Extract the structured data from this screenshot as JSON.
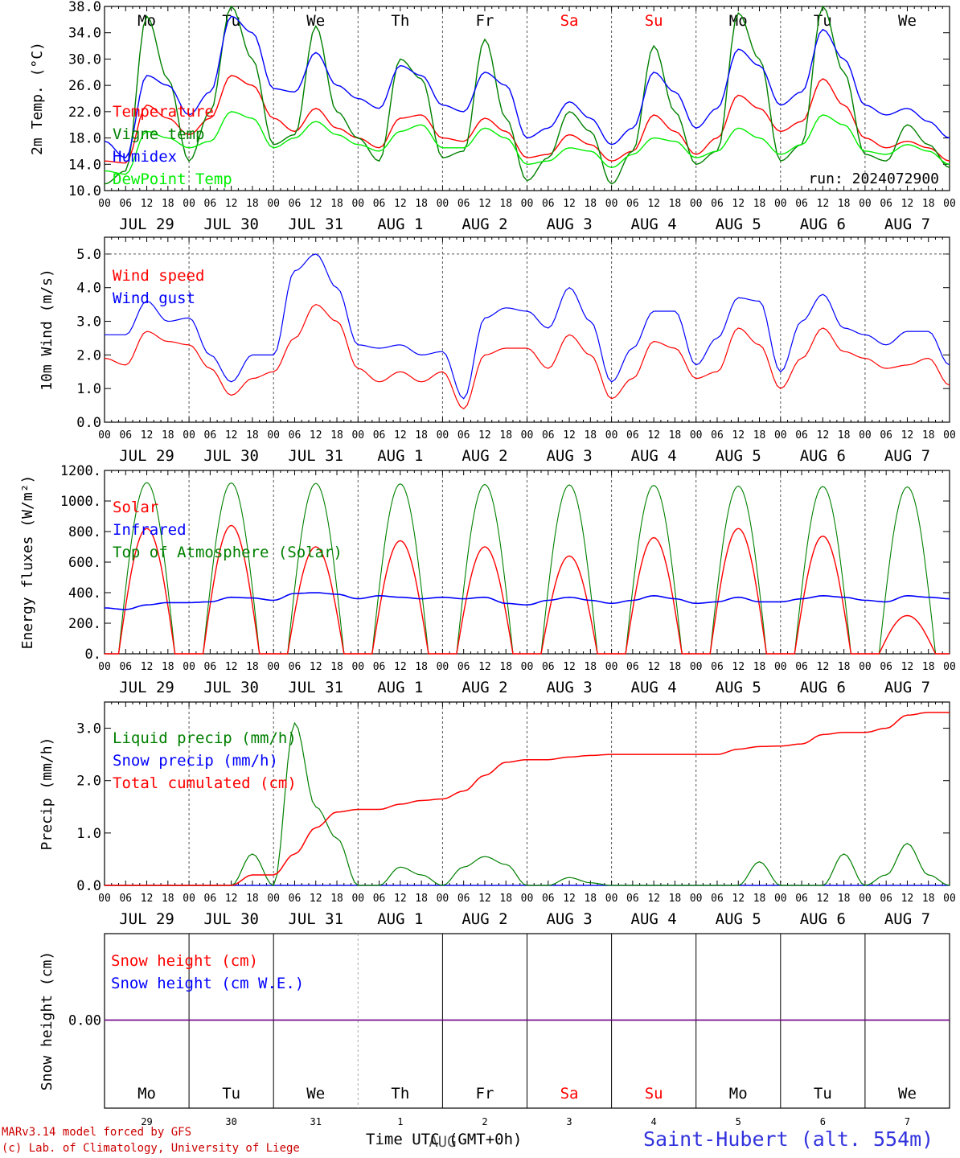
{
  "chart_data": [
    {
      "type": "line",
      "ylabel": "2m Temp. (°C)",
      "ylim": [
        10,
        38
      ],
      "yticks": [
        "10.0",
        "14.0",
        "18.0",
        "22.0",
        "26.0",
        "30.0",
        "34.0",
        "38.0"
      ],
      "run_label": "run: 2024072900",
      "x_hours": [
        0,
        6,
        12,
        18,
        24,
        30,
        36,
        42,
        48,
        54,
        60,
        66,
        72,
        78,
        84,
        90,
        96,
        102,
        108,
        114,
        120,
        126,
        132,
        138,
        144,
        150,
        156,
        162,
        168,
        174,
        180,
        186,
        192,
        198,
        204,
        210,
        216,
        222,
        228,
        234,
        240
      ],
      "series": [
        {
          "name": "Temperature",
          "color": "#ff0000",
          "values": [
            14.5,
            14.2,
            23.0,
            21.0,
            18.5,
            21.0,
            27.5,
            26.0,
            21.0,
            19.0,
            22.5,
            19.5,
            18.0,
            16.5,
            21.0,
            21.5,
            18.0,
            17.5,
            21.0,
            19.0,
            15.0,
            15.5,
            18.5,
            17.0,
            14.5,
            16.0,
            21.5,
            19.0,
            15.5,
            18.0,
            24.5,
            22.5,
            19.0,
            20.5,
            27.0,
            23.0,
            18.0,
            16.5,
            17.5,
            16.5,
            14.5
          ]
        },
        {
          "name": "Vigne temp",
          "color": "#008000",
          "values": [
            11.0,
            13.0,
            36.5,
            27.0,
            14.5,
            22.0,
            38.0,
            30.0,
            17.0,
            18.5,
            35.0,
            22.0,
            18.0,
            14.5,
            30.0,
            27.0,
            15.0,
            16.0,
            33.0,
            21.0,
            11.5,
            15.0,
            22.0,
            19.0,
            11.0,
            16.0,
            32.0,
            22.0,
            14.0,
            16.0,
            37.0,
            30.0,
            14.5,
            17.0,
            38.0,
            28.0,
            15.5,
            14.5,
            20.0,
            17.0,
            13.5
          ]
        },
        {
          "name": "Humidex",
          "color": "#0000ff",
          "values": [
            17.5,
            15.0,
            27.5,
            26.0,
            21.5,
            25.0,
            36.5,
            34.0,
            25.5,
            25.0,
            31.0,
            26.0,
            24.0,
            22.5,
            29.0,
            27.5,
            23.0,
            22.0,
            28.0,
            26.0,
            18.0,
            19.5,
            23.5,
            21.0,
            17.0,
            19.5,
            28.0,
            25.0,
            19.5,
            22.5,
            31.5,
            29.0,
            23.0,
            25.0,
            34.5,
            30.0,
            23.0,
            21.5,
            22.5,
            20.5,
            18.0
          ]
        },
        {
          "name": "DewPoint Temp",
          "color": "#00ee00",
          "values": [
            13.0,
            12.5,
            19.0,
            18.0,
            16.5,
            17.5,
            22.0,
            21.0,
            16.5,
            18.0,
            20.5,
            18.5,
            17.0,
            16.0,
            19.0,
            20.0,
            16.5,
            16.5,
            19.5,
            18.0,
            14.0,
            14.5,
            16.5,
            16.0,
            13.5,
            15.5,
            18.0,
            17.5,
            15.0,
            16.0,
            19.5,
            18.0,
            15.5,
            17.0,
            21.5,
            20.0,
            16.0,
            15.5,
            17.0,
            16.0,
            14.0
          ]
        }
      ]
    },
    {
      "type": "line",
      "ylabel": "10m Wind (m/s)",
      "ylim": [
        0,
        5.5
      ],
      "yticks": [
        "0.0",
        "1.0",
        "2.0",
        "3.0",
        "4.0",
        "5.0"
      ],
      "x_hours": [
        0,
        6,
        12,
        18,
        24,
        30,
        36,
        42,
        48,
        54,
        60,
        66,
        72,
        78,
        84,
        90,
        96,
        102,
        108,
        114,
        120,
        126,
        132,
        138,
        144,
        150,
        156,
        162,
        168,
        174,
        180,
        186,
        192,
        198,
        204,
        210,
        216,
        222,
        228,
        234,
        240
      ],
      "series": [
        {
          "name": "Wind speed",
          "color": "#ff0000",
          "values": [
            1.9,
            1.7,
            2.7,
            2.4,
            2.3,
            1.6,
            0.8,
            1.3,
            1.5,
            2.5,
            3.5,
            3.0,
            1.6,
            1.2,
            1.5,
            1.2,
            1.5,
            0.4,
            2.0,
            2.2,
            2.2,
            1.6,
            2.6,
            2.0,
            0.7,
            1.3,
            2.4,
            2.2,
            1.3,
            1.5,
            2.8,
            2.3,
            1.0,
            1.9,
            2.8,
            2.1,
            1.9,
            1.6,
            1.7,
            1.9,
            1.1
          ]
        },
        {
          "name": "Wind gust",
          "color": "#0000ff",
          "values": [
            2.6,
            2.6,
            3.6,
            3.0,
            3.1,
            2.0,
            1.2,
            2.0,
            2.0,
            4.5,
            5.0,
            4.0,
            2.3,
            2.2,
            2.3,
            2.0,
            2.1,
            0.7,
            3.1,
            3.4,
            3.3,
            2.8,
            4.0,
            3.0,
            1.2,
            2.2,
            3.3,
            3.3,
            1.7,
            2.5,
            3.7,
            3.6,
            1.5,
            3.0,
            3.8,
            2.8,
            2.6,
            2.3,
            2.7,
            2.7,
            1.7
          ]
        }
      ]
    },
    {
      "type": "line",
      "ylabel": "Energy fluxes (W/m²)",
      "ylim": [
        0,
        1200
      ],
      "yticks": [
        "0.",
        "200.",
        "400.",
        "600.",
        "800.",
        "1000.",
        "1200."
      ],
      "series": [
        {
          "name": "Solar",
          "color": "#ff0000",
          "day_peaks": [
            820,
            840,
            700,
            740,
            700,
            640,
            760,
            820,
            770,
            250
          ],
          "note": "daily diurnal values"
        },
        {
          "name": "Infrared",
          "color": "#0000ff",
          "x_hours": [
            0,
            6,
            12,
            18,
            24,
            30,
            36,
            42,
            48,
            54,
            60,
            66,
            72,
            78,
            84,
            90,
            96,
            102,
            108,
            114,
            120,
            126,
            132,
            138,
            144,
            150,
            156,
            162,
            168,
            174,
            180,
            186,
            192,
            198,
            204,
            210,
            216,
            222,
            228,
            234,
            240
          ],
          "values": [
            300,
            290,
            320,
            335,
            335,
            340,
            370,
            365,
            350,
            395,
            400,
            390,
            360,
            380,
            370,
            360,
            370,
            360,
            370,
            330,
            320,
            350,
            370,
            350,
            330,
            350,
            380,
            360,
            330,
            340,
            370,
            340,
            340,
            360,
            380,
            370,
            350,
            340,
            380,
            370,
            360
          ]
        },
        {
          "name": "Top of Atmosphere (Solar)",
          "color": "#008000",
          "day_peaks": [
            1120,
            1118,
            1115,
            1112,
            1108,
            1105,
            1102,
            1098,
            1095,
            1092
          ]
        }
      ]
    },
    {
      "type": "line",
      "ylabel": "Precip (mm/h)",
      "ylim": [
        0,
        3.5
      ],
      "yticks": [
        "0.0",
        "1.0",
        "2.0",
        "3.0"
      ],
      "x_hours": [
        0,
        6,
        12,
        18,
        24,
        30,
        36,
        42,
        48,
        54,
        60,
        66,
        72,
        78,
        84,
        90,
        96,
        102,
        108,
        114,
        120,
        126,
        132,
        138,
        144,
        150,
        156,
        162,
        168,
        174,
        180,
        186,
        192,
        198,
        204,
        210,
        216,
        222,
        228,
        234,
        240
      ],
      "series": [
        {
          "name": "Liquid precip (mm/h)",
          "color": "#008000",
          "values": [
            0,
            0,
            0,
            0,
            0,
            0,
            0,
            0.6,
            0,
            3.1,
            1.5,
            0.9,
            0,
            0,
            0.35,
            0.2,
            0,
            0.35,
            0.55,
            0.4,
            0,
            0,
            0.15,
            0.05,
            0,
            0,
            0,
            0,
            0,
            0,
            0,
            0.45,
            0,
            0,
            0,
            0.6,
            0,
            0.2,
            0.8,
            0.2,
            0
          ]
        },
        {
          "name": "Snow precip (mm/h)",
          "color": "#0000ff",
          "values": [
            0,
            0,
            0,
            0,
            0,
            0,
            0,
            0,
            0,
            0,
            0,
            0,
            0,
            0,
            0,
            0,
            0,
            0,
            0,
            0,
            0,
            0,
            0,
            0,
            0,
            0,
            0,
            0,
            0,
            0,
            0,
            0,
            0,
            0,
            0,
            0,
            0,
            0,
            0,
            0,
            0
          ]
        },
        {
          "name": "Total cumulated (cm)",
          "color": "#ff0000",
          "values": [
            0,
            0,
            0,
            0,
            0,
            0,
            0,
            0.2,
            0.2,
            0.6,
            1.1,
            1.4,
            1.45,
            1.45,
            1.55,
            1.62,
            1.65,
            1.8,
            2.1,
            2.35,
            2.4,
            2.4,
            2.45,
            2.48,
            2.5,
            2.5,
            2.5,
            2.5,
            2.5,
            2.5,
            2.6,
            2.65,
            2.66,
            2.7,
            2.88,
            2.92,
            2.92,
            3.0,
            3.25,
            3.3,
            3.3
          ]
        }
      ]
    },
    {
      "type": "line",
      "ylabel": "Snow height (cm)",
      "yticks": [
        "0.00"
      ],
      "series": [
        {
          "name": "Snow height (cm)",
          "color": "#ff0000",
          "values": [
            0,
            0
          ]
        },
        {
          "name": "Snow height (cm W.E.)",
          "color": "#0000ff",
          "values": [
            0,
            0
          ]
        }
      ]
    }
  ],
  "hour_labels": [
    "00",
    "06",
    "12",
    "18"
  ],
  "final_hour_label": "00",
  "days": [
    {
      "abbr": "Mo",
      "month": "JUL",
      "num": "29",
      "weekend": false
    },
    {
      "abbr": "Tu",
      "month": "JUL",
      "num": "30",
      "weekend": false
    },
    {
      "abbr": "We",
      "month": "JUL",
      "num": "31",
      "weekend": false
    },
    {
      "abbr": "Th",
      "month": "AUG",
      "num": "1",
      "weekend": false
    },
    {
      "abbr": "Fr",
      "month": "AUG",
      "num": "2",
      "weekend": false
    },
    {
      "abbr": "Sa",
      "month": "AUG",
      "num": "3",
      "weekend": true
    },
    {
      "abbr": "Su",
      "month": "AUG",
      "num": "4",
      "weekend": true
    },
    {
      "abbr": "Mo",
      "month": "AUG",
      "num": "5",
      "weekend": false
    },
    {
      "abbr": "Tu",
      "month": "AUG",
      "num": "6",
      "weekend": false
    },
    {
      "abbr": "We",
      "month": "AUG",
      "num": "7",
      "weekend": false
    }
  ],
  "bottom_month_label": "AUG",
  "xlabel": "Time UTC (GMT+0h)",
  "footer": {
    "model_line": "MARv3.14 model forced by GFS",
    "credit_line": "(c) Lab. of Climatology, University of Liege",
    "station": "Saint-Hubert (alt. 554m)"
  },
  "colors": {
    "weekend": "#ff0000",
    "weekday": "#000000",
    "grid": "#555555"
  }
}
